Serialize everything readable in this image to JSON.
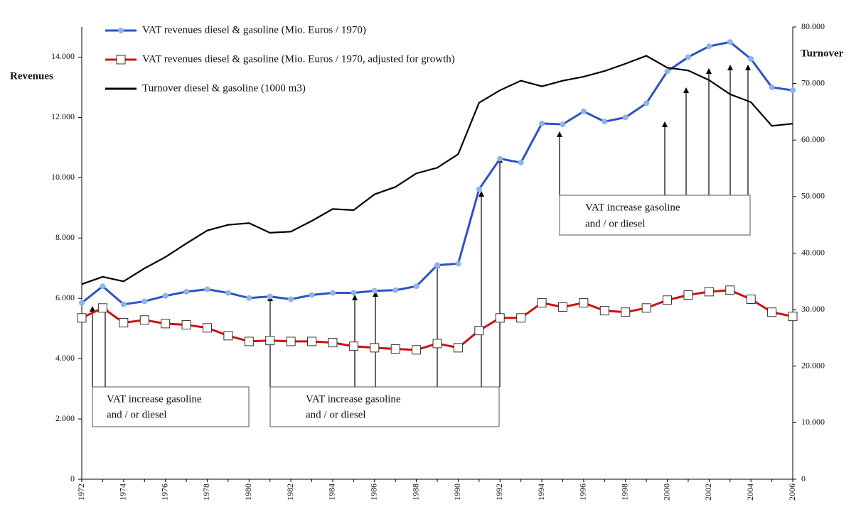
{
  "chart_data": {
    "type": "line",
    "y_label": "Revenues",
    "y2_label": "Turnover",
    "x": [
      1972,
      1973,
      1974,
      1975,
      1976,
      1977,
      1978,
      1979,
      1980,
      1981,
      1982,
      1983,
      1984,
      1985,
      1986,
      1987,
      1988,
      1989,
      1990,
      1991,
      1992,
      1993,
      1994,
      1995,
      1996,
      1997,
      1998,
      1999,
      2000,
      2001,
      2002,
      2003,
      2004,
      2005,
      2006
    ],
    "xlim": [
      1972,
      2006
    ],
    "xticks": [
      1972,
      1974,
      1976,
      1978,
      1980,
      1982,
      1984,
      1986,
      1988,
      1990,
      1992,
      1994,
      1996,
      1998,
      2000,
      2002,
      2004,
      2006
    ],
    "ylim": [
      0,
      15000
    ],
    "yticks": [
      0,
      {
        "value": 2000,
        "label": "2.000"
      },
      {
        "value": 4000,
        "label": "4.000"
      },
      {
        "value": 6000,
        "label": "6.000"
      },
      {
        "value": 8000,
        "label": "8.000"
      },
      {
        "value": 10000,
        "label": "10.000"
      },
      {
        "value": 12000,
        "label": "12.000"
      },
      {
        "value": 14000,
        "label": "14.000"
      }
    ],
    "y2lim": [
      0,
      80000
    ],
    "y2ticks": [
      0,
      {
        "value": 10000,
        "label": "10.000"
      },
      {
        "value": 20000,
        "label": "20.000"
      },
      {
        "value": 30000,
        "label": "30.000"
      },
      {
        "value": 40000,
        "label": "40.000"
      },
      {
        "value": 50000,
        "label": "50.000"
      },
      {
        "value": 60000,
        "label": "60.000"
      },
      {
        "value": 70000,
        "label": "70.000"
      },
      {
        "value": 80000,
        "label": "80.000"
      }
    ],
    "grid": false,
    "legend": "top-left",
    "series": [
      {
        "name": "VAT revenues diesel & gasoline (Mio. Euros / 1970)",
        "color": "#3050c8",
        "marker": "circle",
        "marker_color": "#8fb4e6",
        "values": [
          5850,
          6400,
          5800,
          5900,
          6080,
          6220,
          6300,
          6180,
          6010,
          6060,
          5970,
          6110,
          6180,
          6180,
          6250,
          6270,
          6400,
          7100,
          7150,
          9620,
          10630,
          10500,
          11800,
          11770,
          12200,
          11860,
          12000,
          12470,
          13530,
          14000,
          14360,
          14500,
          13940,
          13000,
          12900
        ]
      },
      {
        "name": "VAT revenues diesel & gasoline (Mio. Euros / 1970, adjusted for growth)",
        "color": "#d01010",
        "marker": "square",
        "marker_color": "#ffffff",
        "values": [
          5350,
          5680,
          5190,
          5280,
          5160,
          5120,
          5020,
          4760,
          4570,
          4600,
          4570,
          4570,
          4530,
          4410,
          4360,
          4320,
          4290,
          4500,
          4360,
          4930,
          5350,
          5350,
          5850,
          5710,
          5850,
          5590,
          5540,
          5680,
          5940,
          6110,
          6220,
          6270,
          5970,
          5540,
          5400
        ]
      },
      {
        "name": "Turnover diesel & gasoline (1000 m3)",
        "color": "#000000",
        "axis": "y2",
        "values": [
          34500,
          35800,
          35000,
          37300,
          39300,
          41700,
          44000,
          45000,
          45300,
          43600,
          43800,
          45700,
          47800,
          47600,
          50400,
          51700,
          54100,
          55100,
          57500,
          66600,
          68800,
          70500,
          69500,
          70500,
          71200,
          72200,
          73500,
          74900,
          72800,
          72300,
          70600,
          68100,
          66700,
          62500,
          62900
        ]
      }
    ],
    "annotations": [
      {
        "lines": [
          "VAT increase gasoline",
          "and / or diesel"
        ]
      },
      {
        "lines": [
          "VAT increase gasoline",
          "and / or diesel"
        ]
      },
      {
        "lines": [
          "VAT increase gasoline",
          "and / or diesel"
        ]
      }
    ]
  }
}
